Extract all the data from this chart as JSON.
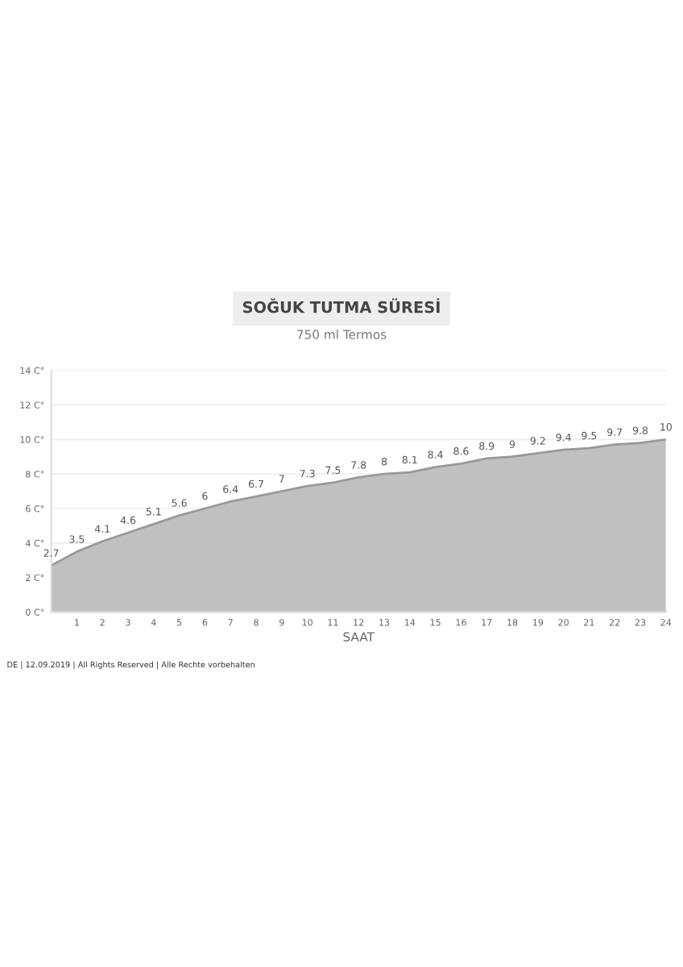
{
  "chart_data": {
    "type": "area",
    "title": "SOĞUK TUTMA SÜRESİ",
    "subtitle": "750 ml Termos",
    "xlabel": "SAAT",
    "x": [
      0,
      1,
      2,
      3,
      4,
      5,
      6,
      7,
      8,
      9,
      10,
      11,
      12,
      13,
      14,
      15,
      16,
      17,
      18,
      19,
      20,
      21,
      22,
      23,
      24
    ],
    "series": [
      {
        "color": "#c0c0c0",
        "values": [
          2.7,
          3.5,
          4.1,
          4.6,
          5.1,
          5.6,
          6,
          6.4,
          6.7,
          7,
          7.3,
          7.5,
          7.8,
          8,
          8.1,
          8.4,
          8.6,
          8.9,
          9,
          9.2,
          9.4,
          9.5,
          9.7,
          9.8,
          10
        ]
      }
    ],
    "xlim": [
      0,
      24
    ],
    "xticks": [
      1,
      2,
      3,
      4,
      5,
      6,
      7,
      8,
      9,
      10,
      11,
      12,
      13,
      14,
      15,
      16,
      17,
      18,
      19,
      20,
      21,
      22,
      23,
      24
    ],
    "ylim": [
      0,
      14
    ],
    "yticks": [
      {
        "value": 0,
        "label": "0 C°"
      },
      {
        "value": 2,
        "label": "2 C°"
      },
      {
        "value": 4,
        "label": "4 C°"
      },
      {
        "value": 6,
        "label": "6 C°"
      },
      {
        "value": 8,
        "label": "8 C°"
      },
      {
        "value": 10,
        "label": "10 C°"
      },
      {
        "value": 12,
        "label": "12 C°"
      },
      {
        "value": 14,
        "label": "14 C°"
      }
    ],
    "grid": "y",
    "data_labels": true,
    "annotations": [
      "DE | 12.09.2019 | All Rights Reserved | Alle Rechte vorbehalten"
    ]
  }
}
